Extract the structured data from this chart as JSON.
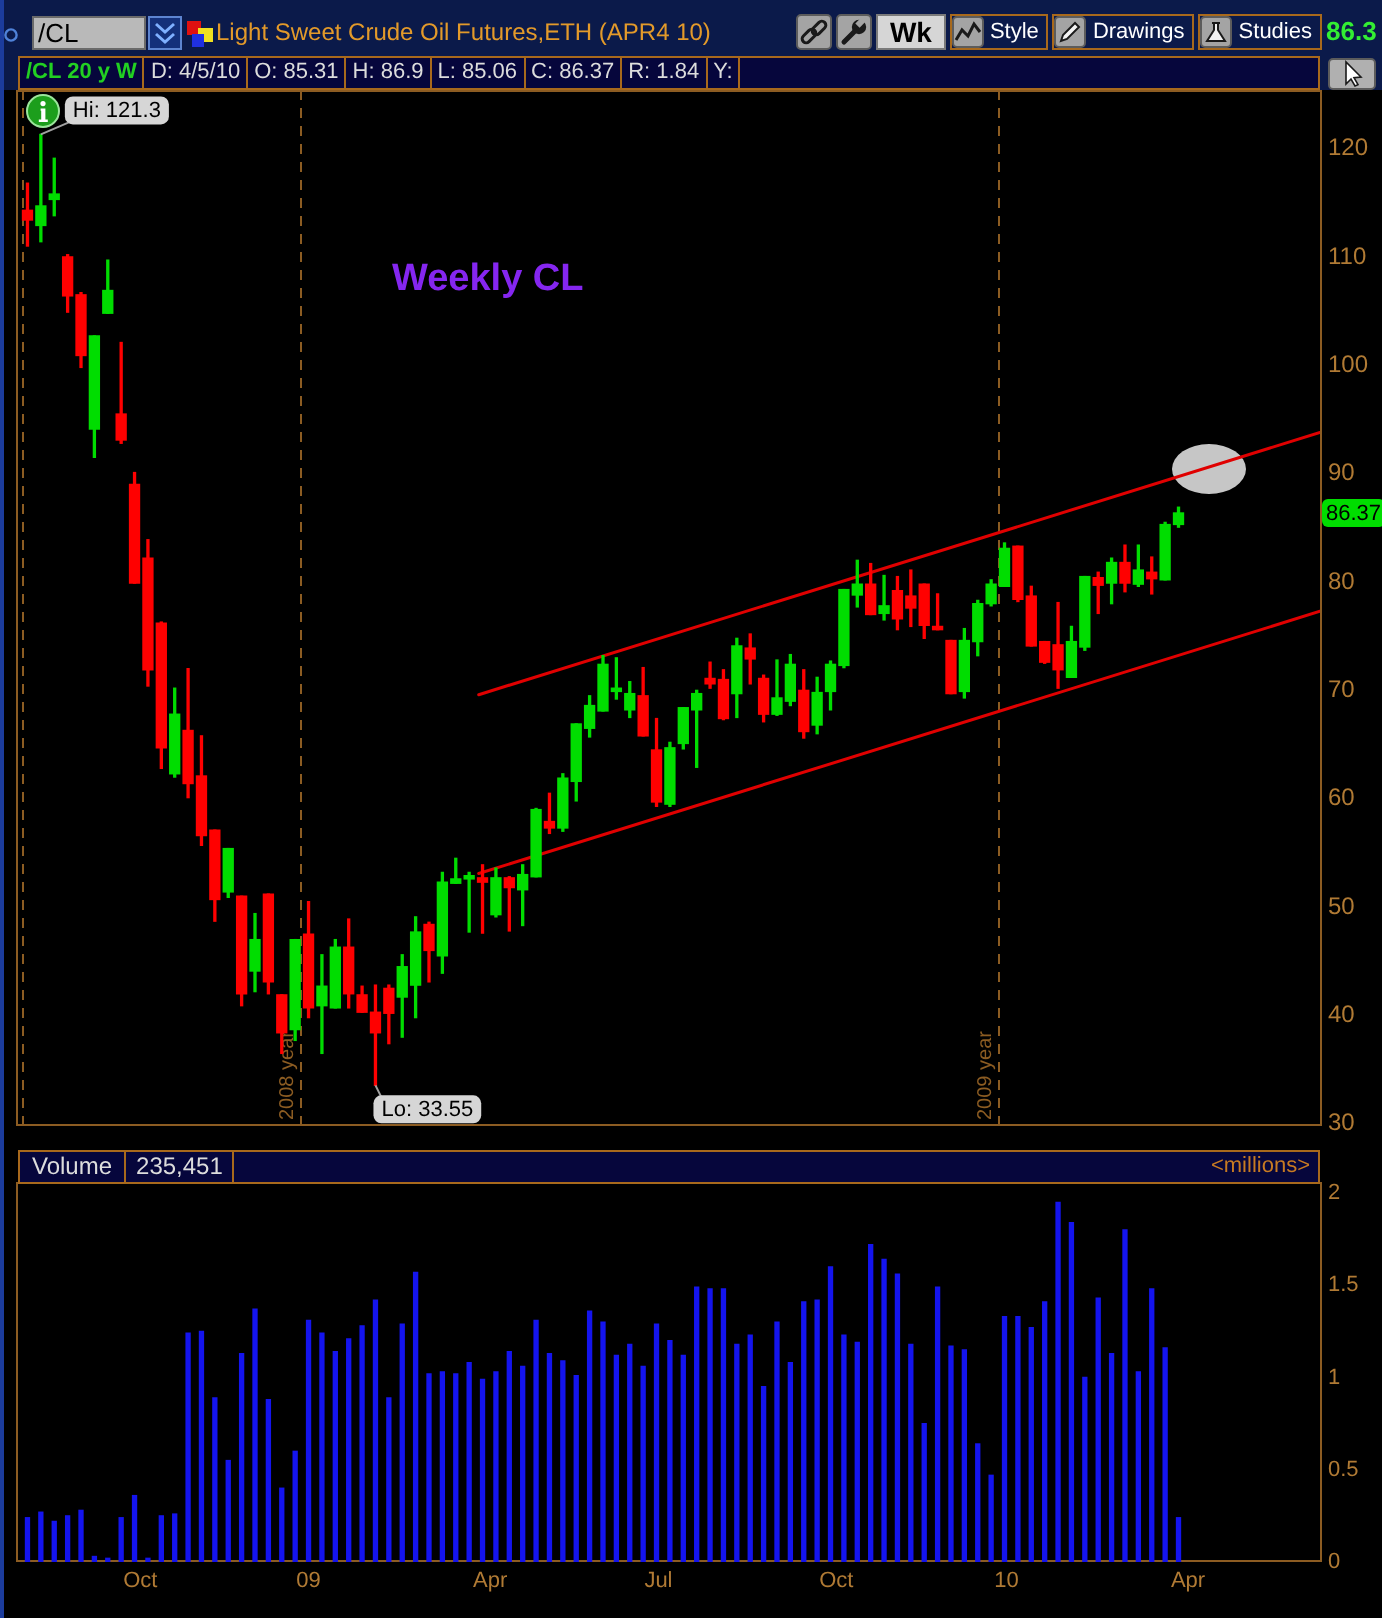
{
  "chart_data": [
    {
      "type": "candlestick",
      "title": "Light Sweet Crude Oil Futures,ETH (APR4 10)",
      "subtitle": "/CL 20 y W",
      "x": [
        "2008-08-11",
        "2008-08-18",
        "2008-08-25",
        "2008-09-01",
        "2008-09-08",
        "2008-09-15",
        "2008-09-22",
        "2008-09-29",
        "2008-10-06",
        "2008-10-13",
        "2008-10-20",
        "2008-10-27",
        "2008-11-03",
        "2008-11-10",
        "2008-11-17",
        "2008-11-24",
        "2008-12-01",
        "2008-12-08",
        "2008-12-15",
        "2008-12-22",
        "2008-12-29",
        "2009-01-05",
        "2009-01-12",
        "2009-01-19",
        "2009-01-26",
        "2009-02-02",
        "2009-02-09",
        "2009-02-16",
        "2009-02-23",
        "2009-03-02",
        "2009-03-09",
        "2009-03-16",
        "2009-03-23",
        "2009-03-30",
        "2009-04-06",
        "2009-04-13",
        "2009-04-20",
        "2009-04-27",
        "2009-05-04",
        "2009-05-11",
        "2009-05-18",
        "2009-05-25",
        "2009-06-01",
        "2009-06-08",
        "2009-06-15",
        "2009-06-22",
        "2009-06-29",
        "2009-07-06",
        "2009-07-13",
        "2009-07-20",
        "2009-07-27",
        "2009-08-03",
        "2009-08-10",
        "2009-08-17",
        "2009-08-24",
        "2009-08-31",
        "2009-09-07",
        "2009-09-14",
        "2009-09-21",
        "2009-09-28",
        "2009-10-05",
        "2009-10-12",
        "2009-10-19",
        "2009-10-26",
        "2009-11-02",
        "2009-11-09",
        "2009-11-16",
        "2009-11-23",
        "2009-11-30",
        "2009-12-07",
        "2009-12-14",
        "2009-12-21",
        "2009-12-28",
        "2010-01-04",
        "2010-01-11",
        "2010-01-18",
        "2010-01-25",
        "2010-02-01",
        "2010-02-08",
        "2010-02-15",
        "2010-02-22",
        "2010-03-01",
        "2010-03-08",
        "2010-03-15",
        "2010-03-22",
        "2010-03-29",
        "2010-04-05"
      ],
      "ohlc": [
        [
          114.3,
          116.8,
          111.0,
          113.4
        ],
        [
          112.9,
          121.3,
          111.4,
          114.7
        ],
        [
          115.3,
          119.1,
          113.8,
          115.8
        ],
        [
          110.0,
          110.2,
          104.9,
          106.4
        ],
        [
          106.5,
          106.7,
          99.8,
          100.9
        ],
        [
          94.1,
          102.7,
          91.5,
          102.7
        ],
        [
          104.8,
          109.7,
          104.8,
          106.9
        ],
        [
          95.5,
          102.1,
          92.8,
          93.1
        ],
        [
          89.0,
          90.1,
          79.9,
          79.9
        ],
        [
          82.2,
          83.9,
          70.4,
          71.9
        ],
        [
          76.2,
          76.3,
          62.8,
          64.7
        ],
        [
          62.3,
          70.2,
          62.0,
          67.8
        ],
        [
          66.3,
          72.0,
          60.1,
          61.4
        ],
        [
          62.1,
          65.8,
          55.7,
          56.6
        ],
        [
          57.1,
          57.1,
          48.7,
          50.7
        ],
        [
          51.4,
          55.4,
          50.9,
          55.4
        ],
        [
          51.0,
          51.0,
          40.9,
          42.0
        ],
        [
          44.1,
          49.4,
          42.2,
          47.0
        ],
        [
          51.2,
          51.2,
          42.0,
          43.1
        ],
        [
          41.9,
          41.9,
          36.5,
          38.4
        ],
        [
          38.7,
          47.0,
          37.7,
          47.0
        ],
        [
          47.5,
          50.5,
          39.8,
          40.7
        ],
        [
          40.9,
          45.6,
          36.5,
          42.7
        ],
        [
          40.7,
          47.0,
          40.7,
          46.3
        ],
        [
          46.3,
          48.9,
          40.7,
          42.0
        ],
        [
          41.9,
          42.7,
          40.3,
          40.3
        ],
        [
          40.3,
          42.8,
          33.55,
          38.4
        ],
        [
          42.5,
          42.8,
          37.4,
          40.2
        ],
        [
          41.7,
          45.6,
          38.0,
          44.5
        ],
        [
          42.8,
          49.1,
          39.8,
          47.7
        ],
        [
          48.4,
          48.6,
          43.1,
          46.0
        ],
        [
          45.5,
          53.2,
          43.9,
          52.3
        ],
        [
          52.2,
          54.5,
          52.2,
          52.6
        ],
        [
          52.6,
          53.2,
          47.7,
          52.9
        ],
        [
          52.7,
          53.9,
          47.6,
          52.3
        ],
        [
          49.3,
          53.6,
          49.1,
          52.7
        ],
        [
          52.7,
          52.8,
          47.8,
          51.8
        ],
        [
          51.6,
          53.9,
          48.3,
          53.0
        ],
        [
          52.8,
          59.1,
          52.8,
          59.0
        ],
        [
          57.9,
          60.5,
          56.8,
          57.3
        ],
        [
          57.3,
          62.3,
          57.0,
          61.9
        ],
        [
          61.6,
          66.9,
          59.8,
          66.9
        ],
        [
          66.5,
          69.5,
          65.7,
          68.6
        ],
        [
          68.1,
          73.2,
          68.1,
          72.4
        ],
        [
          69.9,
          73.0,
          69.2,
          70.2
        ],
        [
          68.2,
          70.8,
          67.5,
          69.7
        ],
        [
          69.5,
          72.1,
          65.8,
          65.8
        ],
        [
          64.5,
          67.4,
          59.3,
          59.7
        ],
        [
          59.5,
          65.2,
          59.3,
          64.7
        ],
        [
          65.1,
          68.4,
          64.6,
          68.4
        ],
        [
          68.2,
          70.0,
          62.9,
          69.7
        ],
        [
          71.1,
          72.6,
          70.2,
          70.6
        ],
        [
          71.0,
          71.9,
          67.3,
          67.4
        ],
        [
          69.7,
          74.8,
          67.5,
          74.1
        ],
        [
          73.9,
          75.2,
          70.6,
          72.9
        ],
        [
          71.1,
          71.4,
          67.1,
          67.8
        ],
        [
          67.8,
          72.8,
          67.7,
          69.3
        ],
        [
          69.0,
          73.3,
          68.6,
          72.4
        ],
        [
          70.0,
          71.9,
          65.6,
          66.2
        ],
        [
          66.8,
          71.2,
          66.0,
          69.8
        ],
        [
          69.9,
          72.7,
          68.2,
          72.4
        ],
        [
          72.3,
          79.3,
          72.1,
          79.3
        ],
        [
          78.8,
          82.0,
          77.7,
          79.8
        ],
        [
          79.8,
          81.7,
          77.0,
          77.0
        ],
        [
          77.1,
          80.6,
          76.5,
          77.8
        ],
        [
          79.2,
          80.5,
          75.6,
          76.6
        ],
        [
          78.7,
          81.1,
          75.9,
          77.6
        ],
        [
          79.8,
          79.8,
          74.8,
          76.0
        ],
        [
          75.9,
          78.9,
          75.6,
          75.6
        ],
        [
          74.6,
          74.6,
          69.7,
          69.7
        ],
        [
          69.9,
          75.7,
          69.3,
          74.6
        ],
        [
          74.5,
          78.3,
          73.2,
          78.0
        ],
        [
          78.0,
          80.2,
          77.8,
          79.8
        ],
        [
          79.6,
          83.6,
          79.6,
          83.1
        ],
        [
          83.3,
          83.3,
          78.2,
          78.4
        ],
        [
          78.7,
          79.6,
          74.1,
          74.1
        ],
        [
          74.5,
          74.5,
          72.5,
          72.6
        ],
        [
          74.2,
          78.1,
          70.2,
          71.9
        ],
        [
          71.2,
          75.9,
          71.2,
          74.5
        ],
        [
          74.0,
          80.5,
          73.7,
          80.5
        ],
        [
          80.4,
          80.9,
          77.1,
          79.7
        ],
        [
          79.9,
          82.2,
          78.0,
          81.8
        ],
        [
          81.8,
          83.4,
          79.1,
          79.9
        ],
        [
          79.8,
          83.4,
          79.6,
          81.1
        ],
        [
          80.9,
          82.3,
          78.9,
          80.3
        ],
        [
          80.2,
          85.5,
          80.2,
          85.3
        ],
        [
          85.31,
          86.9,
          85.06,
          86.37
        ]
      ],
      "colors": [
        "#ff0000",
        "#00dd00",
        "#00dd00",
        "#ff0000",
        "#ff0000",
        "#00dd00",
        "#00dd00",
        "#ff0000",
        "#ff0000",
        "#ff0000",
        "#ff0000",
        "#00dd00",
        "#ff0000",
        "#ff0000",
        "#ff0000",
        "#00dd00",
        "#ff0000",
        "#00dd00",
        "#ff0000",
        "#ff0000",
        "#00dd00",
        "#ff0000",
        "#00dd00",
        "#00dd00",
        "#ff0000",
        "#ff0000",
        "#ff0000",
        "#ff0000",
        "#00dd00",
        "#00dd00",
        "#ff0000",
        "#00dd00",
        "#00dd00",
        "#00dd00",
        "#ff0000",
        "#00dd00",
        "#ff0000",
        "#00dd00",
        "#00dd00",
        "#ff0000",
        "#00dd00",
        "#00dd00",
        "#00dd00",
        "#00dd00",
        "#00dd00",
        "#00dd00",
        "#ff0000",
        "#ff0000",
        "#00dd00",
        "#00dd00",
        "#00dd00",
        "#ff0000",
        "#ff0000",
        "#00dd00",
        "#ff0000",
        "#ff0000",
        "#00dd00",
        "#00dd00",
        "#ff0000",
        "#00dd00",
        "#00dd00",
        "#00dd00",
        "#00dd00",
        "#ff0000",
        "#00dd00",
        "#ff0000",
        "#ff0000",
        "#ff0000",
        "#ff0000",
        "#ff0000",
        "#00dd00",
        "#00dd00",
        "#00dd00",
        "#00dd00",
        "#ff0000",
        "#ff0000",
        "#ff0000",
        "#ff0000",
        "#00dd00",
        "#00dd00",
        "#ff0000",
        "#00dd00",
        "#ff0000",
        "#00dd00",
        "#ff0000",
        "#00dd00",
        "#00dd00"
      ],
      "series": [
        {
          "type": "line",
          "x": [
            "2009-04-04",
            "2010-06-18"
          ],
          "values": [
            69.6,
            93.8
          ],
          "color": "#e00000"
        },
        {
          "type": "line",
          "x": [
            "2009-04-04",
            "2010-06-18"
          ],
          "values": [
            53.1,
            77.3
          ],
          "color": "#e00000"
        }
      ],
      "xlim": [
        "2008-08-05",
        "2010-06-18"
      ],
      "ylim": [
        29.8,
        125.4
      ],
      "yticks": [
        30,
        40,
        50,
        60,
        70,
        80,
        90,
        100,
        110,
        120
      ],
      "tick_labels": "y",
      "ref_lines": [
        {
          "axis": "x",
          "value": "2008-08-08",
          "color": "#8c5c22",
          "line_style": "dashed"
        },
        {
          "axis": "x",
          "value": "2009-01-01",
          "label": "2008 year",
          "color": "#8c5c22",
          "line_style": "dashed"
        },
        {
          "axis": "x",
          "value": "2010-01-01",
          "label": "2009 year",
          "color": "#8c5c22",
          "line_style": "dashed"
        }
      ],
      "annotations": [
        "/CL",
        "Wk",
        "Style",
        "Drawings",
        "Studies",
        "86.3",
        "D: 4/5/10",
        "O: 85.31",
        "H: 86.9",
        "L: 85.06",
        "C: 86.37",
        "R: 1.84",
        "Y:",
        "Weekly CL",
        {
          "text": "Hi: 121.3",
          "x": "2008-08-18",
          "y": 121.3
        },
        {
          "text": "Lo: 33.55",
          "x": "2009-02-09",
          "y": 33.55
        },
        {
          "text": "86.37",
          "y": 86.37
        }
      ]
    },
    {
      "type": "bar",
      "title": "Volume",
      "ylabel": "<millions>",
      "x": [
        "2008-08-11",
        "2008-08-18",
        "2008-08-25",
        "2008-09-01",
        "2008-09-08",
        "2008-09-15",
        "2008-09-22",
        "2008-09-29",
        "2008-10-06",
        "2008-10-13",
        "2008-10-20",
        "2008-10-27",
        "2008-11-03",
        "2008-11-10",
        "2008-11-17",
        "2008-11-24",
        "2008-12-01",
        "2008-12-08",
        "2008-12-15",
        "2008-12-22",
        "2008-12-29",
        "2009-01-05",
        "2009-01-12",
        "2009-01-19",
        "2009-01-26",
        "2009-02-02",
        "2009-02-09",
        "2009-02-16",
        "2009-02-23",
        "2009-03-02",
        "2009-03-09",
        "2009-03-16",
        "2009-03-23",
        "2009-03-30",
        "2009-04-06",
        "2009-04-13",
        "2009-04-20",
        "2009-04-27",
        "2009-05-04",
        "2009-05-11",
        "2009-05-18",
        "2009-05-25",
        "2009-06-01",
        "2009-06-08",
        "2009-06-15",
        "2009-06-22",
        "2009-06-29",
        "2009-07-06",
        "2009-07-13",
        "2009-07-20",
        "2009-07-27",
        "2009-08-03",
        "2009-08-10",
        "2009-08-17",
        "2009-08-24",
        "2009-08-31",
        "2009-09-07",
        "2009-09-14",
        "2009-09-21",
        "2009-09-28",
        "2009-10-05",
        "2009-10-12",
        "2009-10-19",
        "2009-10-26",
        "2009-11-02",
        "2009-11-09",
        "2009-11-16",
        "2009-11-23",
        "2009-11-30",
        "2009-12-07",
        "2009-12-14",
        "2009-12-21",
        "2009-12-28",
        "2010-01-04",
        "2010-01-11",
        "2010-01-18",
        "2010-01-25",
        "2010-02-01",
        "2010-02-08",
        "2010-02-15",
        "2010-02-22",
        "2010-03-01",
        "2010-03-08",
        "2010-03-15",
        "2010-03-22",
        "2010-03-29",
        "2010-04-05"
      ],
      "values": [
        0.24,
        0.27,
        0.22,
        0.25,
        0.28,
        0.03,
        0.02,
        0.24,
        0.36,
        0.02,
        0.25,
        0.26,
        1.24,
        1.25,
        0.89,
        0.55,
        1.13,
        1.37,
        0.88,
        0.4,
        0.6,
        1.31,
        1.24,
        1.14,
        1.21,
        1.28,
        1.42,
        0.89,
        1.29,
        1.57,
        1.02,
        1.03,
        1.02,
        1.08,
        0.99,
        1.03,
        1.14,
        1.06,
        1.31,
        1.13,
        1.09,
        1.01,
        1.36,
        1.3,
        1.12,
        1.18,
        1.06,
        1.29,
        1.2,
        1.12,
        1.49,
        1.48,
        1.48,
        1.18,
        1.23,
        0.95,
        1.3,
        1.08,
        1.41,
        1.42,
        1.6,
        1.23,
        1.19,
        1.72,
        1.64,
        1.56,
        1.18,
        0.75,
        1.49,
        1.17,
        1.15,
        0.64,
        0.47,
        1.33,
        1.33,
        1.27,
        1.41,
        1.95,
        1.84,
        1.0,
        1.43,
        1.13,
        1.8,
        1.03,
        1.48,
        1.16,
        0.24
      ],
      "color": "#1414ee",
      "xlim": [
        "2008-08-05",
        "2010-06-18"
      ],
      "xticks": [
        {
          "value": "2008-10-09",
          "label": "Oct"
        },
        {
          "value": "2009-01-05",
          "label": "09"
        },
        {
          "value": "2009-04-10",
          "label": "Apr"
        },
        {
          "value": "2009-07-07",
          "label": "Jul"
        },
        {
          "value": "2009-10-08",
          "label": "Oct"
        },
        {
          "value": "2010-01-05",
          "label": "10"
        },
        {
          "value": "2010-04-10",
          "label": "Apr"
        }
      ],
      "ylim": [
        0,
        2.06
      ],
      "yticks": [
        0,
        0.5,
        1,
        1.5,
        2
      ],
      "annotations": [
        "235,451"
      ]
    }
  ]
}
